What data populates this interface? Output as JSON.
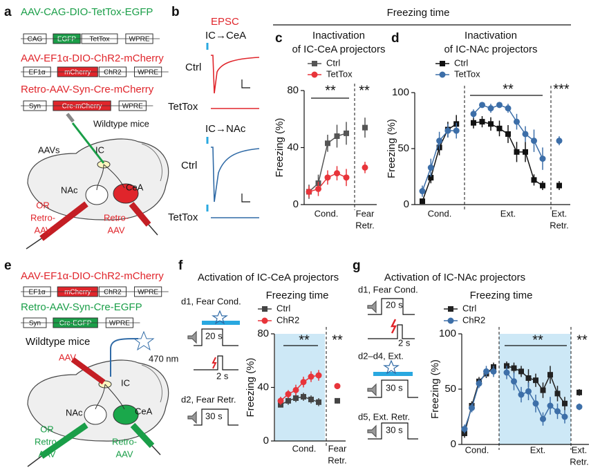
{
  "header": "Freezing time",
  "panels": {
    "a": {
      "letter": "a",
      "constructs": [
        {
          "name": "AAV-CAG-DIO-TetTox-EGFP",
          "color": "#1a9e48",
          "parts": [
            {
              "label": "CAG"
            },
            {
              "label": "EGFP",
              "color": "#1a9e48"
            },
            {
              "label": "TetTox"
            },
            {
              "label": "WPRE"
            }
          ]
        },
        {
          "name": "AAV-EF1α-DIO-ChR2-mCherry",
          "color": "#e0252b",
          "parts": [
            {
              "label": "EF1α"
            },
            {
              "label": "mCherry",
              "color": "#e0252b"
            },
            {
              "label": "ChR2"
            },
            {
              "label": "WPRE"
            }
          ]
        },
        {
          "name": "Retro-AAV-Syn-Cre-mCherry",
          "color": "#e0252b",
          "parts": [
            {
              "label": "Syn"
            },
            {
              "label": "Cre-mCherry",
              "color": "#e0252b"
            },
            {
              "label": "WPRE"
            }
          ]
        }
      ],
      "mouse": "Wildtype mice",
      "labels": [
        "AAVs",
        "IC",
        "NAc",
        "CeA"
      ],
      "or": [
        "OR",
        "Retro-",
        "AAV"
      ],
      "retro": [
        "Retro-",
        "AAV"
      ]
    },
    "b": {
      "letter": "b",
      "epsc": "EPSC",
      "traces": [
        {
          "pathway": "IC→CeA",
          "rows": [
            "Ctrl",
            "TetTox"
          ]
        },
        {
          "pathway": "IC→NAc",
          "rows": [
            "Ctrl",
            "TetTox"
          ]
        }
      ]
    },
    "e": {
      "letter": "e",
      "constructs": [
        {
          "name": "AAV-EF1α-DIO-ChR2-mCherry",
          "color": "#e0252b",
          "parts": [
            {
              "label": "EF1α"
            },
            {
              "label": "mCherry",
              "color": "#e0252b"
            },
            {
              "label": "ChR2"
            },
            {
              "label": "WPRE"
            }
          ]
        },
        {
          "name": "Retro-AAV-Syn-Cre-EGFP",
          "color": "#1a9e48",
          "parts": [
            {
              "label": "Syn"
            },
            {
              "label": "Cre-EGFP",
              "color": "#1a9e48"
            },
            {
              "label": "WPRE"
            }
          ]
        }
      ],
      "mouse": "Wildtype mice",
      "light": "470 nm",
      "labels": [
        "AAV",
        "IC",
        "NAc",
        "CeA"
      ],
      "or": [
        "OR",
        "Retro-",
        "AAV"
      ],
      "retro": [
        "Retro-",
        "AAV"
      ]
    },
    "f_protocol": {
      "days": [
        {
          "label": "d1, Fear Cond.",
          "tone": "20 s",
          "shock": "2 s"
        },
        {
          "label": "d2, Fear Retr.",
          "tone": "30 s"
        }
      ]
    },
    "g_protocol": {
      "days": [
        {
          "label": "d1, Fear Cond.",
          "tone": "20 s",
          "shock": "2 s"
        },
        {
          "label": "d2–d4, Ext.",
          "tone": "30 s"
        },
        {
          "label": "d5, Ext. Retr.",
          "tone": "30 s"
        }
      ]
    }
  },
  "chart_data": [
    {
      "type": "line",
      "panel": "c",
      "title": [
        "Inactivation",
        "of IC-CeA projectors"
      ],
      "y_label": "Freezing (%)",
      "ylim": [
        0,
        80
      ],
      "yticks": [
        0,
        40,
        80
      ],
      "groups": [
        {
          "label": [
            "Cond."
          ]
        },
        {
          "label": [
            "Fear",
            "Retr."
          ]
        }
      ],
      "series": [
        {
          "name": "Ctrl",
          "color": "#555555",
          "marker": "square",
          "values": [
            [
              9,
              15,
              43,
              48,
              50
            ],
            [
              54
            ]
          ],
          "errors": [
            [
              5,
              6,
              6,
              8,
              8
            ],
            [
              7
            ]
          ]
        },
        {
          "name": "TetTox",
          "color": "#e8343a",
          "marker": "circle",
          "values": [
            [
              9,
              11,
              19,
              22,
              19
            ],
            [
              26
            ]
          ],
          "errors": [
            [
              4,
              5,
              5,
              5,
              6
            ],
            [
              4
            ]
          ]
        }
      ],
      "annotations": [
        "**",
        "**"
      ]
    },
    {
      "type": "line",
      "panel": "d",
      "title": [
        "Inactivation",
        "of IC-NAc projectors"
      ],
      "y_label": "Freezing (%)",
      "ylim": [
        0,
        100
      ],
      "yticks": [
        0,
        50,
        100
      ],
      "groups": [
        {
          "label": [
            "Cond."
          ]
        },
        {
          "label": [
            "Ext."
          ]
        },
        {
          "label": [
            "Ext.",
            "Retr."
          ]
        }
      ],
      "series": [
        {
          "name": "Ctrl",
          "color": "#111111",
          "marker": "square",
          "values": [
            [
              3,
              24,
              51,
              67,
              72
            ],
            [
              73,
              74,
              72,
              68,
              63,
              47,
              47,
              22,
              17
            ],
            [
              17
            ]
          ],
          "errors": [
            [
              2,
              5,
              7,
              7,
              8
            ],
            [
              5,
              5,
              6,
              7,
              8,
              9,
              9,
              5,
              4
            ],
            [
              4
            ]
          ]
        },
        {
          "name": "TetTox",
          "color": "#3c6ea8",
          "marker": "circle",
          "values": [
            [
              12,
              33,
              57,
              66,
              66
            ],
            [
              81,
              89,
              86,
              89,
              86,
              74,
              63,
              57,
              41
            ],
            [
              57
            ]
          ],
          "errors": [
            [
              5,
              8,
              8,
              6,
              7
            ],
            [
              4,
              2,
              4,
              2,
              4,
              7,
              7,
              10,
              10
            ],
            [
              4
            ]
          ]
        }
      ],
      "annotations": [
        "**",
        "***"
      ]
    },
    {
      "type": "line",
      "panel": "f",
      "title": [
        "Activation of IC-CeA projectors"
      ],
      "subtitle": "Freezing time",
      "y_label": "Freezing (%)",
      "ylim": [
        0,
        80
      ],
      "yticks": [
        0,
        40,
        80
      ],
      "shaded_group": 0,
      "shade_color": "#cde8f6",
      "groups": [
        {
          "label": [
            "Cond."
          ]
        },
        {
          "label": [
            "Fear",
            "Retr."
          ]
        }
      ],
      "series": [
        {
          "name": "Ctrl",
          "color": "#444444",
          "marker": "square",
          "values": [
            [
              27,
              30,
              32,
              33,
              31,
              29
            ],
            [
              30
            ]
          ],
          "errors": [
            [
              2,
              3,
              3,
              3,
              3,
              3
            ],
            [
              2
            ]
          ]
        },
        {
          "name": "ChR2",
          "color": "#e8343a",
          "marker": "circle",
          "values": [
            [
              30,
              35,
              38,
              44,
              48,
              49
            ],
            [
              41
            ]
          ],
          "errors": [
            [
              3,
              3,
              4,
              4,
              4,
              4
            ],
            [
              2
            ]
          ]
        }
      ],
      "annotations": [
        "**",
        "**"
      ]
    },
    {
      "type": "line",
      "panel": "g",
      "title": [
        "Activation of IC-NAc projectors"
      ],
      "subtitle": "Freezing time",
      "y_label": "Freezing (%)",
      "ylim": [
        0,
        100
      ],
      "yticks": [
        0,
        50,
        100
      ],
      "shaded_group": 1,
      "shade_color": "#cde8f6",
      "groups": [
        {
          "label": [
            "Cond."
          ]
        },
        {
          "label": [
            "Ext."
          ]
        },
        {
          "label": [
            "Ext.",
            "Retr."
          ]
        }
      ],
      "series": [
        {
          "name": "Ctrl",
          "color": "#222222",
          "marker": "square",
          "values": [
            [
              10,
              35,
              57,
              64,
              70
            ],
            [
              71,
              69,
              66,
              60,
              58,
              49,
              63,
              46,
              37
            ],
            [
              47
            ]
          ],
          "errors": [
            [
              4,
              4,
              4,
              4,
              4
            ],
            [
              4,
              5,
              5,
              8,
              6,
              7,
              8,
              7,
              6
            ],
            [
              3
            ]
          ]
        },
        {
          "name": "ChR2",
          "color": "#3d6fa8",
          "marker": "circle",
          "values": [
            [
              14,
              33,
              55,
              66,
              66
            ],
            [
              65,
              57,
              45,
              48,
              37,
              23,
              35,
              30,
              25
            ],
            [
              34
            ]
          ],
          "errors": [
            [
              4,
              4,
              4,
              5,
              5
            ],
            [
              6,
              8,
              7,
              8,
              8,
              6,
              8,
              7,
              6
            ],
            [
              3
            ]
          ]
        }
      ],
      "annotations": [
        "**",
        "**"
      ]
    }
  ]
}
